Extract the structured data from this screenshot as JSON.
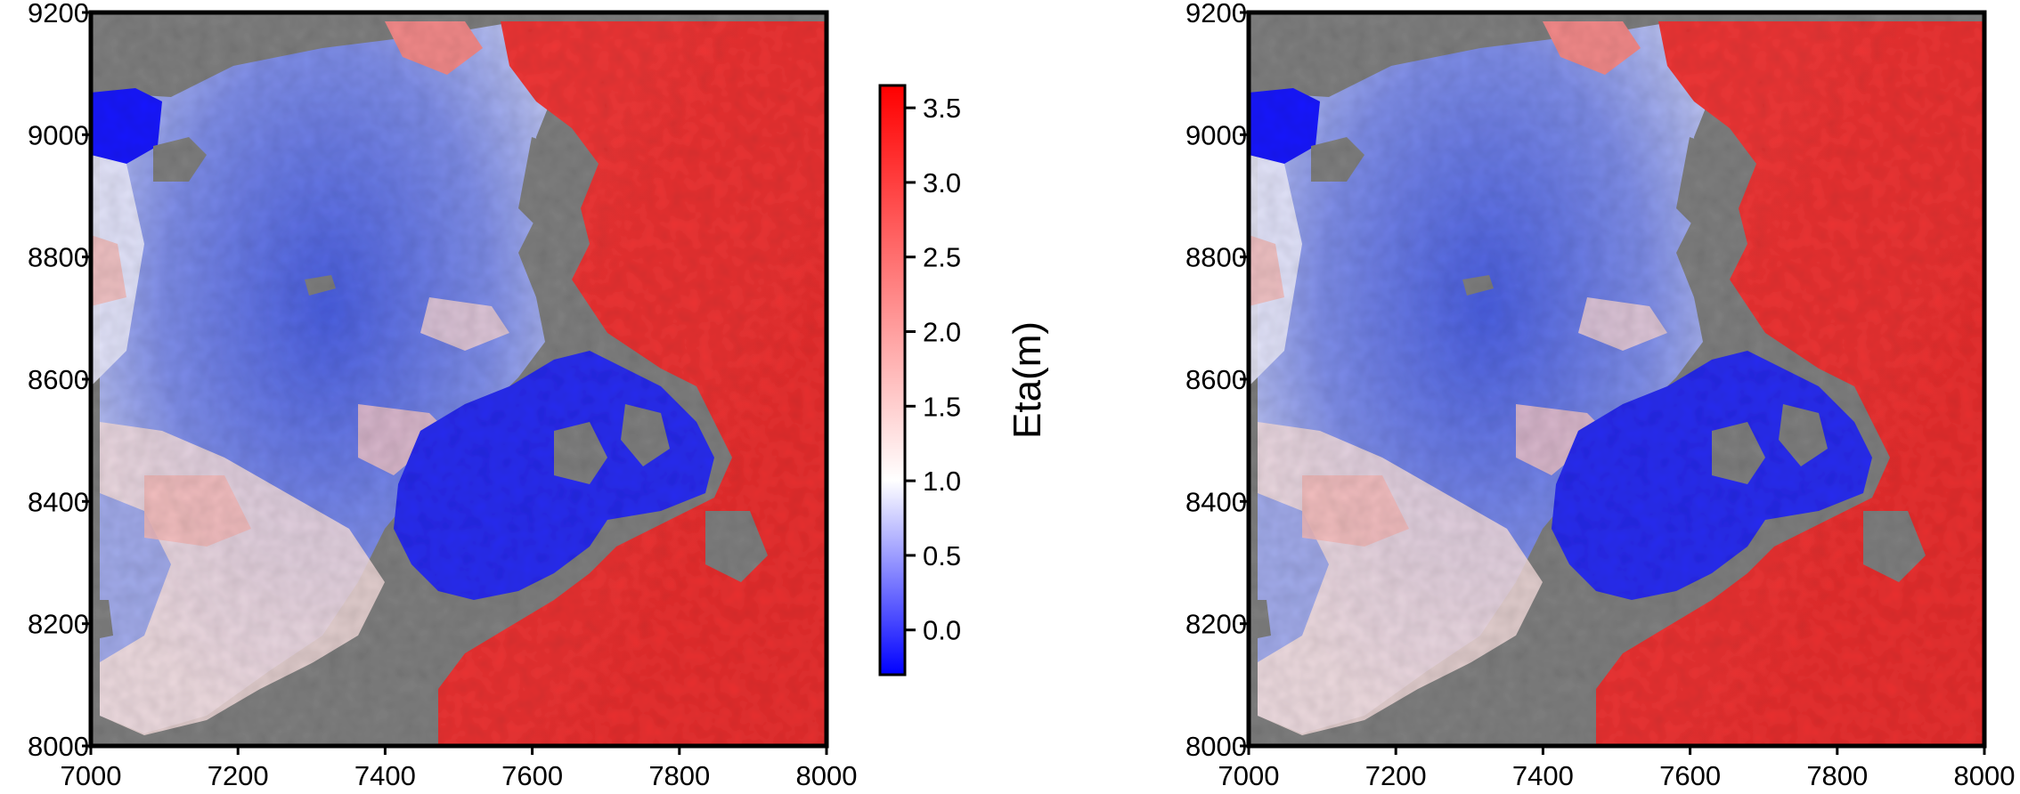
{
  "chart_data": [
    {
      "type": "heatmap",
      "title": "",
      "xlabel": "",
      "ylabel": "",
      "xlim": [
        7000,
        8000
      ],
      "ylim": [
        8000,
        9200
      ],
      "x_ticks": [
        "7000",
        "7200",
        "7400",
        "7600",
        "7800",
        "8000"
      ],
      "y_ticks": [
        "8000",
        "8200",
        "8400",
        "8600",
        "8800",
        "9000",
        "9200"
      ],
      "grid": false,
      "background_color": "#808080"
    },
    {
      "type": "heatmap",
      "title": "",
      "xlabel": "",
      "ylabel": "",
      "xlim": [
        7000,
        8000
      ],
      "ylim": [
        8000,
        9200
      ],
      "x_ticks": [
        "7000",
        "7200",
        "7400",
        "7600",
        "7800",
        "8000"
      ],
      "y_ticks": [
        "8000",
        "8200",
        "8400",
        "8600",
        "8800",
        "9000",
        "9200"
      ],
      "grid": false,
      "background_color": "#808080"
    }
  ],
  "colorbar": {
    "label": "Eta(m)",
    "range": [
      -0.3,
      3.65
    ],
    "ticks": [
      "0.0",
      "0.5",
      "1.0",
      "1.5",
      "2.0",
      "2.5",
      "3.0",
      "3.5"
    ],
    "colors": {
      "low": "#0000ff",
      "mid": "#ffffff",
      "high": "#ff0000"
    },
    "mid_value": 1.0
  }
}
